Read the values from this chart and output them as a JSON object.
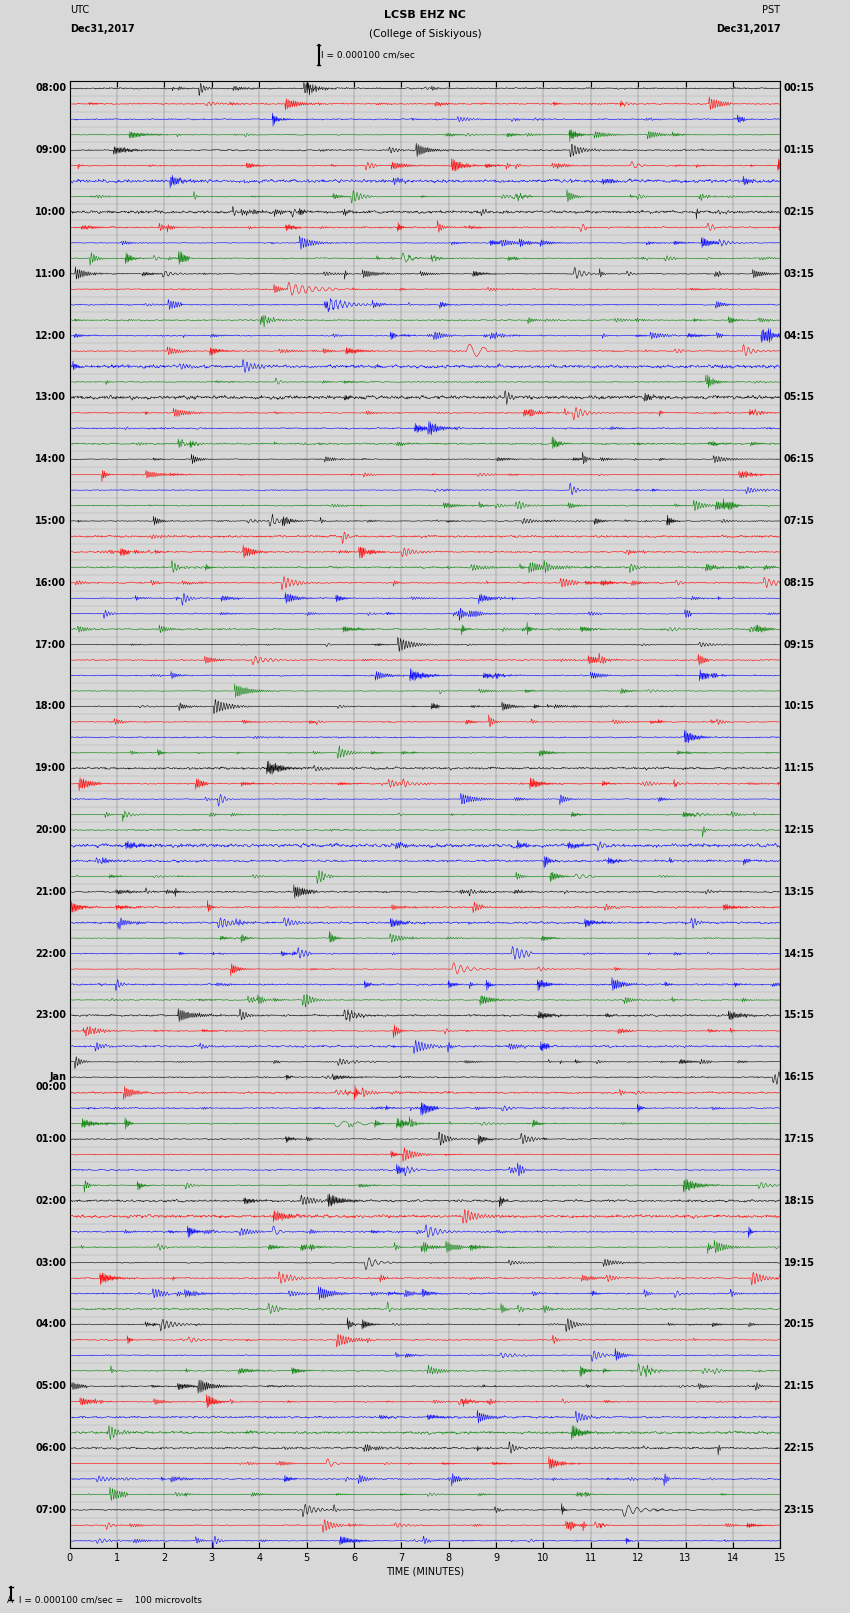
{
  "title_line1": "LCSB EHZ NC",
  "title_line2": "(College of Siskiyous)",
  "scale_label": "I = 0.000100 cm/sec",
  "utc_label": "UTC",
  "utc_date": "Dec31,2017",
  "pst_label": "PST",
  "pst_date": "Dec31,2017",
  "bottom_label": "A  I = 0.000100 cm/sec =    100 microvolts",
  "xlabel": "TIME (MINUTES)",
  "fig_width": 8.5,
  "fig_height": 16.13,
  "dpi": 100,
  "colors": [
    "black",
    "red",
    "blue",
    "green"
  ],
  "left_times": [
    "08:00",
    "",
    "",
    "",
    "09:00",
    "",
    "",
    "",
    "10:00",
    "",
    "",
    "",
    "11:00",
    "",
    "",
    "",
    "12:00",
    "",
    "",
    "",
    "13:00",
    "",
    "",
    "",
    "14:00",
    "",
    "",
    "",
    "15:00",
    "",
    "",
    "",
    "16:00",
    "",
    "",
    "",
    "17:00",
    "",
    "",
    "",
    "18:00",
    "",
    "",
    "",
    "19:00",
    "",
    "",
    "",
    "20:00",
    "",
    "",
    "",
    "21:00",
    "",
    "",
    "",
    "22:00",
    "",
    "",
    "",
    "23:00",
    "",
    "",
    "",
    "Jan",
    "",
    "",
    "",
    "01:00",
    "",
    "",
    "",
    "02:00",
    "",
    "",
    "",
    "03:00",
    "",
    "",
    "",
    "04:00",
    "",
    "",
    "",
    "05:00",
    "",
    "",
    "",
    "06:00",
    "",
    "",
    "",
    "07:00",
    "",
    ""
  ],
  "left_times2": [
    "",
    "",
    "",
    "",
    "",
    "",
    "",
    "",
    "",
    "",
    "",
    "",
    "",
    "",
    "",
    "",
    "",
    "",
    "",
    "",
    "",
    "",
    "",
    "",
    "",
    "",
    "",
    "",
    "",
    "",
    "",
    "",
    "",
    "",
    "",
    "",
    "",
    "",
    "",
    "",
    "",
    "",
    "",
    "",
    "",
    "",
    "",
    "",
    "",
    "",
    "",
    "",
    "",
    "",
    "",
    "",
    "",
    "",
    "",
    "",
    "",
    "",
    "",
    "",
    "00:00",
    "",
    "",
    "",
    "",
    "",
    "",
    "",
    "",
    "",
    "",
    "",
    "",
    "",
    "",
    "",
    "",
    "",
    "",
    "",
    "",
    "",
    "",
    "",
    "",
    "",
    "",
    "",
    "",
    "",
    ""
  ],
  "right_times": [
    "00:15",
    "",
    "",
    "",
    "01:15",
    "",
    "",
    "",
    "02:15",
    "",
    "",
    "",
    "03:15",
    "",
    "",
    "",
    "04:15",
    "",
    "",
    "",
    "05:15",
    "",
    "",
    "",
    "06:15",
    "",
    "",
    "",
    "07:15",
    "",
    "",
    "",
    "08:15",
    "",
    "",
    "",
    "09:15",
    "",
    "",
    "",
    "10:15",
    "",
    "",
    "",
    "11:15",
    "",
    "",
    "",
    "12:15",
    "",
    "",
    "",
    "13:15",
    "",
    "",
    "",
    "14:15",
    "",
    "",
    "",
    "15:15",
    "",
    "",
    "",
    "16:15",
    "",
    "",
    "",
    "17:15",
    "",
    "",
    "",
    "18:15",
    "",
    "",
    "",
    "19:15",
    "",
    "",
    "",
    "20:15",
    "",
    "",
    "",
    "21:15",
    "",
    "",
    "",
    "22:15",
    "",
    "",
    "",
    "23:15",
    "",
    ""
  ],
  "n_rows": 95,
  "minutes_per_row": 15,
  "samples_per_minute": 100,
  "background_color": "#d8d8d8",
  "font_size_title": 8,
  "font_size_labels": 7,
  "font_size_ticks": 7,
  "linewidth": 0.4
}
